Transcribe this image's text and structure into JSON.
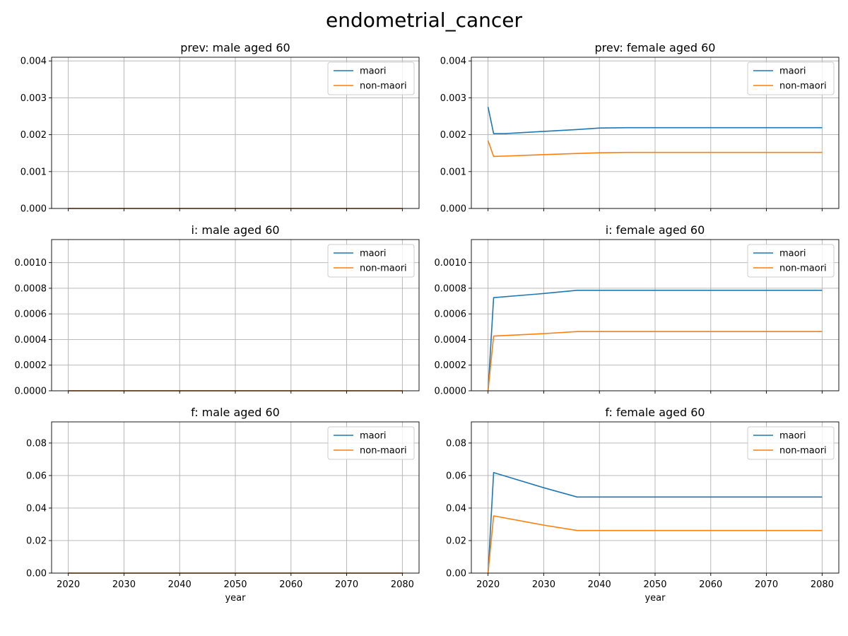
{
  "figure": {
    "title": "endometrial_cancer"
  },
  "chart_data": [
    {
      "type": "line",
      "title": "prev: male aged 60",
      "xlabel": "",
      "ylabel": "",
      "xlim": [
        2017,
        2083
      ],
      "ylim": [
        0,
        0.0041
      ],
      "xticks": [
        2020,
        2030,
        2040,
        2050,
        2060,
        2070,
        2080
      ],
      "show_xtick_labels": false,
      "yticks": [
        0,
        0.001,
        0.002,
        0.003,
        0.004
      ],
      "ytick_labels": [
        "0.000",
        "0.001",
        "0.002",
        "0.003",
        "0.004"
      ],
      "grid": true,
      "legend": "top-right",
      "series": [
        {
          "name": "maori",
          "color": "#1f77b4",
          "points": [
            [
              2020,
              0
            ],
            [
              2080,
              0
            ]
          ]
        },
        {
          "name": "non-maori",
          "color": "#ff7f0e",
          "points": [
            [
              2020,
              0
            ],
            [
              2080,
              0
            ]
          ]
        }
      ]
    },
    {
      "type": "line",
      "title": "prev: female aged 60",
      "xlabel": "",
      "ylabel": "",
      "xlim": [
        2017,
        2083
      ],
      "ylim": [
        0,
        0.0041
      ],
      "xticks": [
        2020,
        2030,
        2040,
        2050,
        2060,
        2070,
        2080
      ],
      "show_xtick_labels": false,
      "yticks": [
        0,
        0.001,
        0.002,
        0.003,
        0.004
      ],
      "ytick_labels": [
        "0.000",
        "0.001",
        "0.002",
        "0.003",
        "0.004"
      ],
      "grid": true,
      "legend": "top-right",
      "series": [
        {
          "name": "maori",
          "color": "#1f77b4",
          "points": [
            [
              2020,
              0.00275
            ],
            [
              2021,
              0.00203
            ],
            [
              2023,
              0.00203
            ],
            [
              2030,
              0.00209
            ],
            [
              2036,
              0.00214
            ],
            [
              2040,
              0.00218
            ],
            [
              2045,
              0.00219
            ],
            [
              2050,
              0.00219
            ],
            [
              2080,
              0.00219
            ]
          ]
        },
        {
          "name": "non-maori",
          "color": "#ff7f0e",
          "points": [
            [
              2020,
              0.00184
            ],
            [
              2021,
              0.00141
            ],
            [
              2023,
              0.00142
            ],
            [
              2030,
              0.00146
            ],
            [
              2036,
              0.00149
            ],
            [
              2040,
              0.00151
            ],
            [
              2045,
              0.00152
            ],
            [
              2050,
              0.00152
            ],
            [
              2080,
              0.00152
            ]
          ]
        }
      ]
    },
    {
      "type": "line",
      "title": "i: male aged 60",
      "xlabel": "",
      "ylabel": "",
      "xlim": [
        2017,
        2083
      ],
      "ylim": [
        0,
        0.00118
      ],
      "xticks": [
        2020,
        2030,
        2040,
        2050,
        2060,
        2070,
        2080
      ],
      "show_xtick_labels": false,
      "yticks": [
        0,
        0.0002,
        0.0004,
        0.0006,
        0.0008,
        0.001
      ],
      "ytick_labels": [
        "0.0000",
        "0.0002",
        "0.0004",
        "0.0006",
        "0.0008",
        "0.0010"
      ],
      "grid": true,
      "legend": "top-right",
      "series": [
        {
          "name": "maori",
          "color": "#1f77b4",
          "points": [
            [
              2020,
              0
            ],
            [
              2080,
              0
            ]
          ]
        },
        {
          "name": "non-maori",
          "color": "#ff7f0e",
          "points": [
            [
              2020,
              0
            ],
            [
              2080,
              0
            ]
          ]
        }
      ]
    },
    {
      "type": "line",
      "title": "i: female aged 60",
      "xlabel": "",
      "ylabel": "",
      "xlim": [
        2017,
        2083
      ],
      "ylim": [
        0,
        0.00118
      ],
      "xticks": [
        2020,
        2030,
        2040,
        2050,
        2060,
        2070,
        2080
      ],
      "show_xtick_labels": false,
      "yticks": [
        0,
        0.0002,
        0.0004,
        0.0006,
        0.0008,
        0.001
      ],
      "ytick_labels": [
        "0.0000",
        "0.0002",
        "0.0004",
        "0.0006",
        "0.0008",
        "0.0010"
      ],
      "grid": true,
      "legend": "top-right",
      "series": [
        {
          "name": "maori",
          "color": "#1f77b4",
          "points": [
            [
              2020,
              0
            ],
            [
              2021,
              0.000727
            ],
            [
              2030,
              0.000759
            ],
            [
              2036,
              0.000784
            ],
            [
              2080,
              0.000784
            ]
          ]
        },
        {
          "name": "non-maori",
          "color": "#ff7f0e",
          "points": [
            [
              2020,
              0
            ],
            [
              2021,
              0.000427
            ],
            [
              2030,
              0.000446
            ],
            [
              2036,
              0.000462
            ],
            [
              2080,
              0.000462
            ]
          ]
        }
      ]
    },
    {
      "type": "line",
      "title": "f: male aged 60",
      "xlabel": "year",
      "ylabel": "",
      "xlim": [
        2017,
        2083
      ],
      "ylim": [
        0,
        0.093
      ],
      "xticks": [
        2020,
        2030,
        2040,
        2050,
        2060,
        2070,
        2080
      ],
      "show_xtick_labels": true,
      "yticks": [
        0,
        0.02,
        0.04,
        0.06,
        0.08
      ],
      "ytick_labels": [
        "0.00",
        "0.02",
        "0.04",
        "0.06",
        "0.08"
      ],
      "grid": true,
      "legend": "top-right",
      "series": [
        {
          "name": "maori",
          "color": "#1f77b4",
          "points": [
            [
              2020,
              0
            ],
            [
              2080,
              0
            ]
          ]
        },
        {
          "name": "non-maori",
          "color": "#ff7f0e",
          "points": [
            [
              2020,
              0
            ],
            [
              2080,
              0
            ]
          ]
        }
      ]
    },
    {
      "type": "line",
      "title": "f: female aged 60",
      "xlabel": "year",
      "ylabel": "",
      "xlim": [
        2017,
        2083
      ],
      "ylim": [
        0,
        0.093
      ],
      "xticks": [
        2020,
        2030,
        2040,
        2050,
        2060,
        2070,
        2080
      ],
      "show_xtick_labels": true,
      "yticks": [
        0,
        0.02,
        0.04,
        0.06,
        0.08
      ],
      "ytick_labels": [
        "0.00",
        "0.02",
        "0.04",
        "0.06",
        "0.08"
      ],
      "grid": true,
      "legend": "top-right",
      "series": [
        {
          "name": "maori",
          "color": "#1f77b4",
          "points": [
            [
              2020,
              0
            ],
            [
              2021,
              0.0618
            ],
            [
              2030,
              0.0525
            ],
            [
              2036,
              0.0468
            ],
            [
              2080,
              0.0468
            ]
          ]
        },
        {
          "name": "non-maori",
          "color": "#ff7f0e",
          "points": [
            [
              2020,
              0
            ],
            [
              2021,
              0.0352
            ],
            [
              2030,
              0.0295
            ],
            [
              2036,
              0.0262
            ],
            [
              2080,
              0.0262
            ]
          ]
        }
      ]
    }
  ]
}
